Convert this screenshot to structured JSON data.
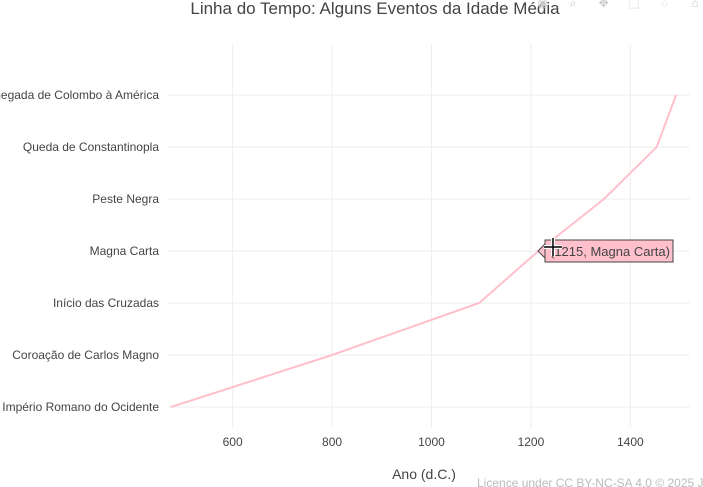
{
  "chart_data": {
    "type": "line",
    "title": "Linha do Tempo: Alguns Eventos da Idade Média",
    "xlabel": "Ano (d.C.)",
    "ylabel": "",
    "x_ticks": [
      600,
      800,
      1000,
      1200,
      1400
    ],
    "xlim": [
      470,
      1520
    ],
    "categories": [
      "Queda do Império Romano do Ocidente",
      "Coroação de Carlos Magno",
      "Início das Cruzadas",
      "Magna Carta",
      "Peste Negra",
      "Queda de Constantinopla",
      "Chegada de Colombo à América"
    ],
    "series": [
      {
        "x": [
          476,
          800,
          1096,
          1215,
          1347,
          1453,
          1492
        ],
        "y": [
          "Queda do Império Romano do Ocidente",
          "Coroação de Carlos Magno",
          "Início das Cruzadas",
          "Magna Carta",
          "Peste Negra",
          "Queda de Constantinopla",
          "Chegada de Colombo à América"
        ],
        "color": "#ffc0cb"
      }
    ],
    "grid": true,
    "legend": false
  },
  "hover": {
    "label": "(1215, Magna Carta)"
  },
  "credit": "Licence under CC BY-NC-SA 4.0 © 2025 J",
  "modebar_icons": [
    "camera-icon",
    "zoom-icon",
    "pan-icon",
    "box-select-icon",
    "lasso-icon",
    "reset-icon"
  ]
}
